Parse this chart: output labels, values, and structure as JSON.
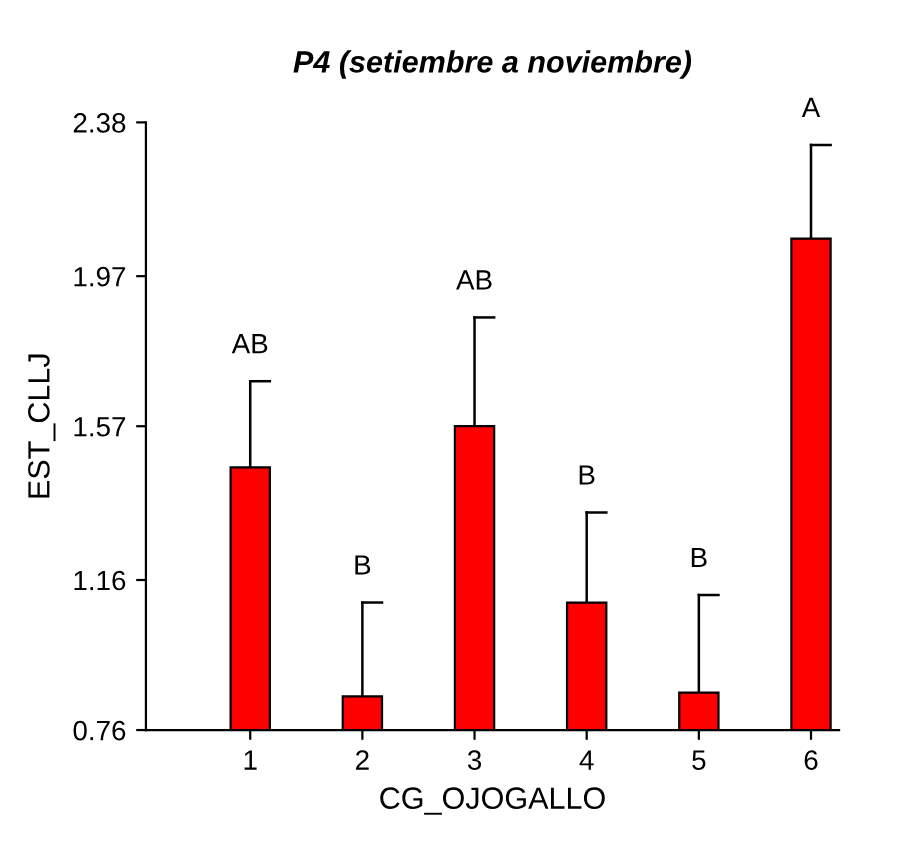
{
  "chart_data": {
    "type": "bar",
    "title": "P4 (setiembre a noviembre)",
    "xlabel": "CG_OJOGALLO",
    "ylabel": "EST_CLLJ",
    "categories": [
      "1",
      "2",
      "3",
      "4",
      "5",
      "6"
    ],
    "values": [
      1.46,
      0.85,
      1.57,
      1.1,
      0.86,
      2.07
    ],
    "errors": [
      [
        1.46,
        1.69
      ],
      [
        0.85,
        1.1
      ],
      [
        1.57,
        1.86
      ],
      [
        1.1,
        1.34
      ],
      [
        0.86,
        1.12
      ],
      [
        2.07,
        2.32
      ]
    ],
    "color": "#ff0000",
    "ylim": [
      0.76,
      2.38
    ],
    "yticks": [
      0.76,
      1.16,
      1.57,
      1.97,
      2.38
    ],
    "grid": false,
    "annotations": [
      {
        "text": "AB",
        "x": "1",
        "y": 1.69
      },
      {
        "text": "B",
        "x": "2",
        "y": 1.1
      },
      {
        "text": "AB",
        "x": "3",
        "y": 1.86
      },
      {
        "text": "B",
        "x": "4",
        "y": 1.34
      },
      {
        "text": "B",
        "x": "5",
        "y": 1.12
      },
      {
        "text": "A",
        "x": "6",
        "y": 2.32
      }
    ]
  }
}
